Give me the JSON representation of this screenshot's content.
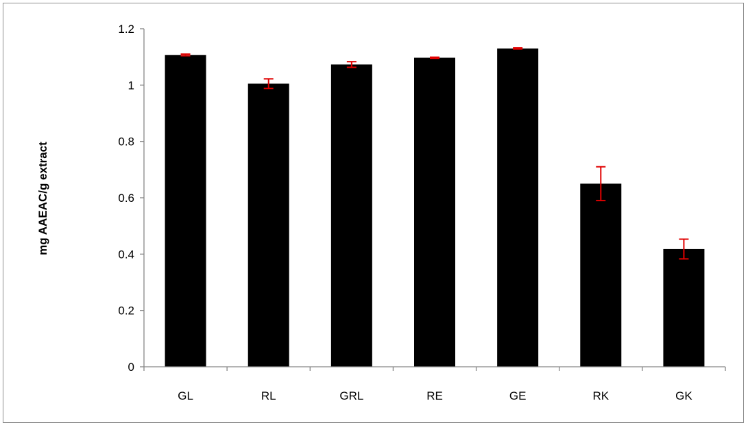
{
  "chart_data": {
    "type": "bar",
    "title": "",
    "xlabel": "",
    "ylabel": "mg AAEAC/g extract",
    "categories": [
      "GL",
      "RL",
      "GRL",
      "RE",
      "GE",
      "RK",
      "GK"
    ],
    "values": [
      1.107,
      1.005,
      1.073,
      1.097,
      1.13,
      0.65,
      0.418
    ],
    "error": [
      0.003,
      0.017,
      0.01,
      0.002,
      0.002,
      0.06,
      0.035
    ],
    "ylim": [
      0,
      1.2
    ],
    "yticks": [
      0,
      0.2,
      0.4,
      0.6,
      0.8,
      1.0,
      1.2
    ],
    "ytick_labels": [
      "0",
      "0.2",
      "0.4",
      "0.6",
      "0.8",
      "1",
      "1.2"
    ],
    "grid": false,
    "legend": "none",
    "colors": {
      "bar": "#000000",
      "error_bar": "#e00000",
      "axis": "#868686",
      "frame": "#8c8c8c"
    }
  }
}
